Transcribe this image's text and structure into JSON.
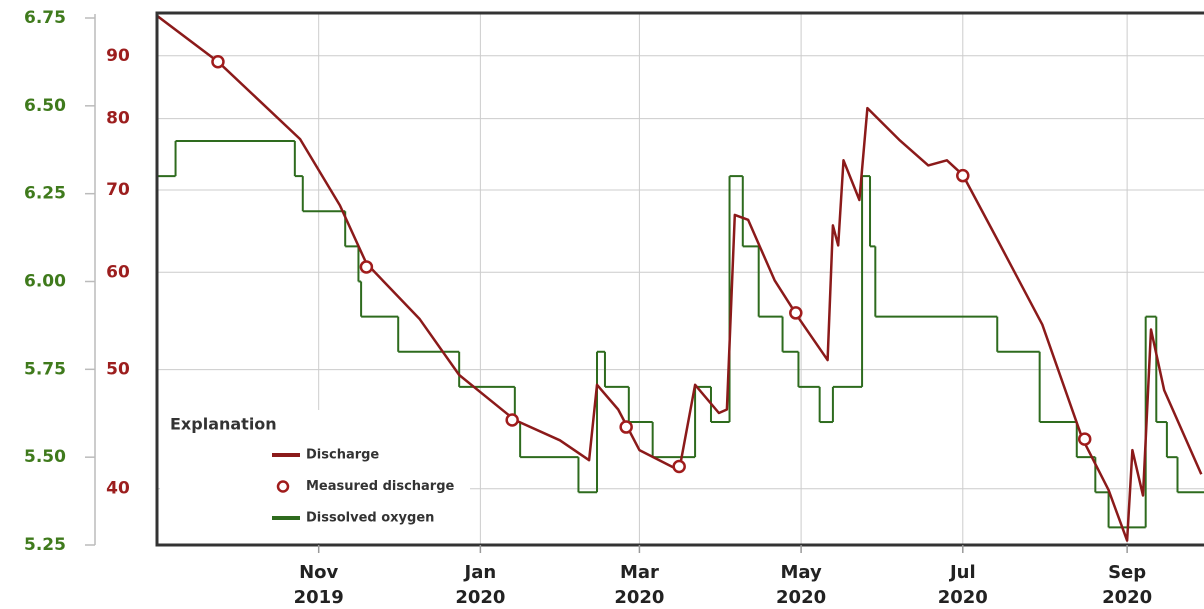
{
  "chart_data": {
    "type": "line",
    "xlim": [
      "2019-09-01",
      "2020-09-30"
    ],
    "xticks": [
      {
        "value": "2019-11-01",
        "label": "Nov\n2019"
      },
      {
        "value": "2020-01-01",
        "label": "Jan\n2020"
      },
      {
        "value": "2020-03-01",
        "label": "Mar\n2020"
      },
      {
        "value": "2020-05-01",
        "label": "May\n2020"
      },
      {
        "value": "2020-07-01",
        "label": "Jul\n2020"
      },
      {
        "value": "2020-09-01",
        "label": "Sep\n2020"
      }
    ],
    "ylim": [
      5.25,
      6.75
    ],
    "yticks": [
      5.25,
      {
        "value": 5.5,
        "label": "5.50"
      },
      5.75,
      {
        "value": 6,
        "label": "6.00"
      },
      6.25,
      {
        "value": 6.5,
        "label": "6.50"
      },
      6.75
    ],
    "y2lim": [
      36,
      96.6
    ],
    "y2ticks": [
      40,
      50,
      60,
      70,
      80,
      90
    ],
    "y2log": true,
    "grid": true,
    "legend": {
      "title": "Explanation",
      "position": "lower left"
    },
    "series": [
      {
        "name": "Discharge",
        "type": "line",
        "axis": "y2",
        "color": "#8b1a1a",
        "x": [
          "2019-09-01",
          "2019-09-24",
          "2019-10-25",
          "2019-11-09",
          "2019-11-19",
          "2019-12-09",
          "2019-12-24",
          "2020-01-14",
          "2020-01-31",
          "2020-02-11",
          "2020-02-14",
          "2020-02-22",
          "2020-03-01",
          "2020-03-16",
          "2020-03-22",
          "2020-03-31",
          "2020-04-03",
          "2020-04-06",
          "2020-04-11",
          "2020-04-21",
          "2020-04-30",
          "2020-05-11",
          "2020-05-13",
          "2020-05-15",
          "2020-05-17",
          "2020-05-23",
          "2020-05-26",
          "2020-06-07",
          "2020-06-18",
          "2020-06-25",
          "2020-07-01",
          "2020-07-14",
          "2020-07-31",
          "2020-08-15",
          "2020-08-25",
          "2020-09-01",
          "2020-09-03",
          "2020-09-07",
          "2020-09-10",
          "2020-09-15",
          "2020-09-29"
        ],
        "values": [
          97,
          89,
          77,
          68,
          61,
          55,
          49.5,
          45.5,
          43.8,
          42.2,
          48.6,
          46.4,
          43,
          41.4,
          48.6,
          46.1,
          46.4,
          66.8,
          66.2,
          59.1,
          55.1,
          50.9,
          65.5,
          63.1,
          74,
          68.7,
          81.6,
          76.9,
          73.3,
          74,
          72,
          63.8,
          54.4,
          44,
          39.9,
          36.3,
          43,
          39.5,
          53.9,
          48.1,
          41.1
        ]
      },
      {
        "name": "Measured discharge",
        "type": "scatter",
        "axis": "y2",
        "color": "#a01c1c",
        "x": [
          "2019-09-24",
          "2019-11-19",
          "2020-01-13",
          "2020-02-25",
          "2020-03-16",
          "2020-04-29",
          "2020-07-01",
          "2020-08-16"
        ],
        "values": [
          89,
          60.6,
          45.5,
          44.9,
          41.7,
          55.6,
          71.9,
          43.9
        ]
      },
      {
        "name": "Dissolved oxygen",
        "type": "step",
        "axis": "y",
        "color": "#2e6b1e",
        "x": [
          "2019-09-01",
          "2019-09-08",
          "2019-10-23",
          "2019-10-26",
          "2019-11-11",
          "2019-11-16",
          "2019-11-17",
          "2019-12-01",
          "2019-12-24",
          "2020-01-14",
          "2020-01-16",
          "2020-02-07",
          "2020-02-14",
          "2020-02-17",
          "2020-02-26",
          "2020-03-06",
          "2020-03-22",
          "2020-03-28",
          "2020-04-04",
          "2020-04-09",
          "2020-04-15",
          "2020-04-24",
          "2020-04-30",
          "2020-05-08",
          "2020-05-13",
          "2020-05-24",
          "2020-05-27",
          "2020-05-29",
          "2020-07-14",
          "2020-07-30",
          "2020-08-13",
          "2020-08-20",
          "2020-08-25",
          "2020-09-08",
          "2020-09-12",
          "2020-09-16",
          "2020-09-20"
        ],
        "values": [
          6.3,
          6.4,
          6.3,
          6.2,
          6.1,
          6.0,
          5.9,
          5.8,
          5.7,
          5.6,
          5.5,
          5.4,
          5.8,
          5.7,
          5.6,
          5.5,
          5.7,
          5.6,
          6.3,
          6.1,
          5.9,
          5.8,
          5.7,
          5.6,
          5.7,
          6.3,
          6.1,
          5.9,
          5.8,
          5.6,
          5.5,
          5.4,
          5.3,
          5.9,
          5.6,
          5.5,
          5.4
        ]
      }
    ]
  }
}
